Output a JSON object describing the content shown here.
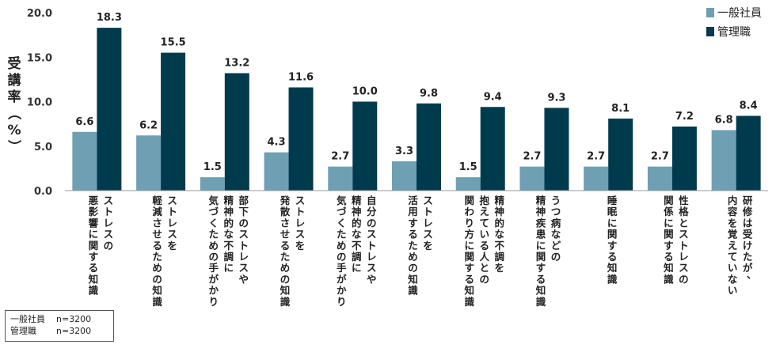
{
  "chart_data": {
    "type": "bar",
    "ylabel": "受講率（%）",
    "ylim": [
      0,
      20
    ],
    "yticks": [
      "0.0",
      "5.0",
      "10.0",
      "15.0",
      "20.0"
    ],
    "legend_position": "top-right",
    "colors": {
      "general": "#6f9fb2",
      "manager": "#003b4d"
    },
    "categories": [
      "ストレスの\n悪影響に関する知識",
      "ストレスを\n軽減させるための知識",
      "部下のストレスや\n精神的な不調に\n気づくための手がかり",
      "ストレスを\n発散させるための知識",
      "自分のストレスや\n精神的な不調に\n気づくための手がかり",
      "ストレスを\n活用するための知識",
      "精神的な不調を\n抱えている人との\n関わり方に関する知識",
      "うつ病などの\n精神疾患に関する知識",
      "睡眠に関する知識",
      "性格とストレスの\n関係に関する知識",
      "研修は受けたが、\n内容を覚えていない"
    ],
    "series": [
      {
        "name": "一般社員",
        "values": [
          6.6,
          6.2,
          1.5,
          4.3,
          2.7,
          3.3,
          1.5,
          2.7,
          2.7,
          2.7,
          6.8
        ]
      },
      {
        "name": "管理職",
        "values": [
          18.3,
          15.5,
          13.2,
          11.6,
          10.0,
          9.8,
          9.4,
          9.3,
          8.1,
          7.2,
          8.4
        ]
      }
    ]
  },
  "sample_note": [
    {
      "name": "一般社員",
      "n": "n=3200"
    },
    {
      "name": "管理職",
      "n": "n=3200"
    }
  ]
}
